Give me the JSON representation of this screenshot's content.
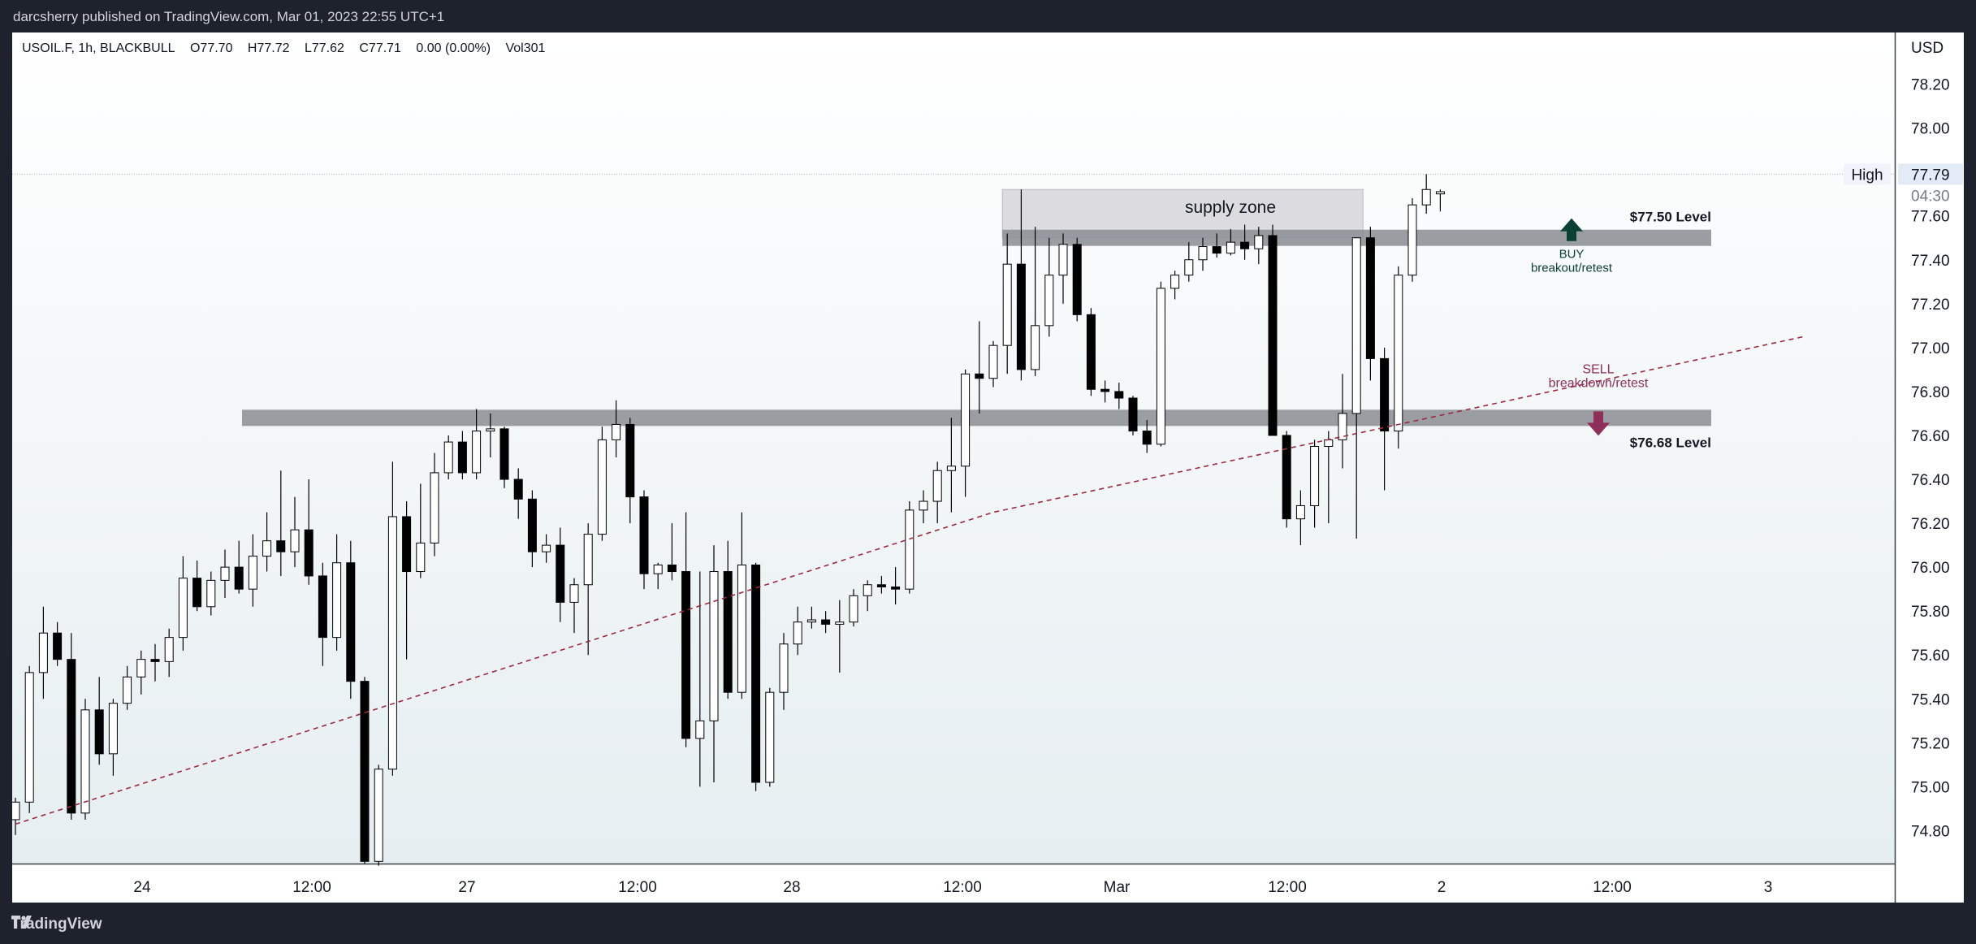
{
  "header": {
    "published": "darcsherry published on TradingView.com, Mar 01, 2023 22:55 UTC+1"
  },
  "legend": {
    "symbol": "USOIL.F, 1h, BLACKBULL",
    "open": "O77.70",
    "high": "H77.72",
    "low": "L77.62",
    "close": "C77.71",
    "change": "0.00 (0.00%)",
    "volume": "Vol301"
  },
  "price_axis": {
    "currency": "USD",
    "high_tag": "High",
    "high_value": "77.79",
    "countdown": "04:30"
  },
  "annotations": {
    "supply_zone": "supply zone",
    "level_top": "$77.50 Level",
    "level_bottom": "$76.68 Level",
    "buy": "BUY",
    "buy_sub": "breakout/retest",
    "sell": "SELL",
    "sell_sub": "breakdown/retest"
  },
  "footer": {
    "brand": "TradingView"
  },
  "colors": {
    "bull_body": "#ffffff",
    "bear_body": "#000000",
    "wick": "#000000",
    "zone_fill": "#dcdce0",
    "level_band": "#8a8d93",
    "trendline": "#9c2a3e",
    "buy_arrow": "#0b4037",
    "sell_arrow": "#8e2e59"
  },
  "chart_data": {
    "type": "candlestick",
    "timeframe": "1h",
    "x_tick_labels": [
      "24",
      "12:00",
      "27",
      "12:00",
      "28",
      "12:00",
      "Mar",
      "12:00",
      "2",
      "12:00",
      "3"
    ],
    "y_tick_labels": [
      "78.20",
      "78.00",
      "77.60",
      "77.40",
      "77.20",
      "77.00",
      "76.80",
      "76.60",
      "76.40",
      "76.20",
      "76.00",
      "75.80",
      "75.60",
      "75.40",
      "75.20",
      "75.00",
      "74.80"
    ],
    "ylim": [
      74.65,
      78.45
    ],
    "levels": [
      77.5,
      76.68
    ],
    "supply_zone": [
      77.5,
      77.72
    ],
    "trendline": [
      [
        0,
        74.83
      ],
      [
        70,
        76.25
      ],
      [
        128,
        77.05
      ]
    ],
    "candles": [
      {
        "o": 74.85,
        "h": 74.95,
        "l": 74.78,
        "c": 74.93
      },
      {
        "o": 74.93,
        "h": 75.55,
        "l": 74.88,
        "c": 75.52
      },
      {
        "o": 75.52,
        "h": 75.82,
        "l": 75.4,
        "c": 75.7
      },
      {
        "o": 75.7,
        "h": 75.75,
        "l": 75.55,
        "c": 75.58
      },
      {
        "o": 75.58,
        "h": 75.7,
        "l": 74.85,
        "c": 74.88
      },
      {
        "o": 74.88,
        "h": 75.4,
        "l": 74.85,
        "c": 75.35
      },
      {
        "o": 75.35,
        "h": 75.5,
        "l": 75.1,
        "c": 75.15
      },
      {
        "o": 75.15,
        "h": 75.4,
        "l": 75.05,
        "c": 75.38
      },
      {
        "o": 75.38,
        "h": 75.55,
        "l": 75.35,
        "c": 75.5
      },
      {
        "o": 75.5,
        "h": 75.62,
        "l": 75.42,
        "c": 75.58
      },
      {
        "o": 75.58,
        "h": 75.65,
        "l": 75.48,
        "c": 75.57
      },
      {
        "o": 75.57,
        "h": 75.72,
        "l": 75.5,
        "c": 75.68
      },
      {
        "o": 75.68,
        "h": 76.05,
        "l": 75.62,
        "c": 75.95
      },
      {
        "o": 75.95,
        "h": 76.03,
        "l": 75.8,
        "c": 75.82
      },
      {
        "o": 75.82,
        "h": 75.98,
        "l": 75.78,
        "c": 75.94
      },
      {
        "o": 75.94,
        "h": 76.08,
        "l": 75.86,
        "c": 76.0
      },
      {
        "o": 76.0,
        "h": 76.12,
        "l": 75.88,
        "c": 75.9
      },
      {
        "o": 75.9,
        "h": 76.15,
        "l": 75.82,
        "c": 76.05
      },
      {
        "o": 76.05,
        "h": 76.25,
        "l": 75.98,
        "c": 76.12
      },
      {
        "o": 76.12,
        "h": 76.44,
        "l": 75.96,
        "c": 76.07
      },
      {
        "o": 76.07,
        "h": 76.32,
        "l": 76.0,
        "c": 76.17
      },
      {
        "o": 76.17,
        "h": 76.4,
        "l": 75.92,
        "c": 75.96
      },
      {
        "o": 75.96,
        "h": 76.02,
        "l": 75.55,
        "c": 75.68
      },
      {
        "o": 75.68,
        "h": 76.15,
        "l": 75.62,
        "c": 76.02
      },
      {
        "o": 76.02,
        "h": 76.12,
        "l": 75.4,
        "c": 75.48
      },
      {
        "o": 75.48,
        "h": 75.5,
        "l": 74.65,
        "c": 74.66
      },
      {
        "o": 74.66,
        "h": 75.1,
        "l": 74.64,
        "c": 75.08
      },
      {
        "o": 75.08,
        "h": 76.48,
        "l": 75.05,
        "c": 76.23
      },
      {
        "o": 76.23,
        "h": 76.3,
        "l": 75.58,
        "c": 75.98
      },
      {
        "o": 75.98,
        "h": 76.38,
        "l": 75.95,
        "c": 76.11
      },
      {
        "o": 76.11,
        "h": 76.52,
        "l": 76.05,
        "c": 76.43
      },
      {
        "o": 76.43,
        "h": 76.6,
        "l": 76.4,
        "c": 76.57
      },
      {
        "o": 76.57,
        "h": 76.62,
        "l": 76.4,
        "c": 76.43
      },
      {
        "o": 76.43,
        "h": 76.72,
        "l": 76.4,
        "c": 76.62
      },
      {
        "o": 76.62,
        "h": 76.7,
        "l": 76.5,
        "c": 76.63
      },
      {
        "o": 76.63,
        "h": 76.64,
        "l": 76.36,
        "c": 76.4
      },
      {
        "o": 76.4,
        "h": 76.45,
        "l": 76.22,
        "c": 76.31
      },
      {
        "o": 76.31,
        "h": 76.35,
        "l": 76.0,
        "c": 76.07
      },
      {
        "o": 76.07,
        "h": 76.15,
        "l": 76.02,
        "c": 76.1
      },
      {
        "o": 76.1,
        "h": 76.18,
        "l": 75.75,
        "c": 75.84
      },
      {
        "o": 75.84,
        "h": 75.95,
        "l": 75.7,
        "c": 75.92
      },
      {
        "o": 75.92,
        "h": 76.2,
        "l": 75.6,
        "c": 76.15
      },
      {
        "o": 76.15,
        "h": 76.64,
        "l": 76.12,
        "c": 76.58
      },
      {
        "o": 76.58,
        "h": 76.76,
        "l": 76.5,
        "c": 76.65
      },
      {
        "o": 76.65,
        "h": 76.68,
        "l": 76.2,
        "c": 76.32
      },
      {
        "o": 76.32,
        "h": 76.35,
        "l": 75.9,
        "c": 75.97
      },
      {
        "o": 75.97,
        "h": 76.02,
        "l": 75.9,
        "c": 76.01
      },
      {
        "o": 76.01,
        "h": 76.2,
        "l": 75.94,
        "c": 75.98
      },
      {
        "o": 75.98,
        "h": 76.25,
        "l": 75.18,
        "c": 75.22
      },
      {
        "o": 75.22,
        "h": 75.98,
        "l": 75.0,
        "c": 75.3
      },
      {
        "o": 75.3,
        "h": 76.1,
        "l": 75.02,
        "c": 75.98
      },
      {
        "o": 75.98,
        "h": 76.12,
        "l": 75.4,
        "c": 75.43
      },
      {
        "o": 75.43,
        "h": 76.25,
        "l": 75.4,
        "c": 76.01
      },
      {
        "o": 76.01,
        "h": 76.02,
        "l": 74.98,
        "c": 75.02
      },
      {
        "o": 75.02,
        "h": 75.45,
        "l": 75.0,
        "c": 75.43
      },
      {
        "o": 75.43,
        "h": 75.7,
        "l": 75.35,
        "c": 75.65
      },
      {
        "o": 75.65,
        "h": 75.82,
        "l": 75.6,
        "c": 75.75
      },
      {
        "o": 75.75,
        "h": 75.82,
        "l": 75.72,
        "c": 75.76
      },
      {
        "o": 75.76,
        "h": 75.8,
        "l": 75.7,
        "c": 75.74
      },
      {
        "o": 75.74,
        "h": 75.85,
        "l": 75.52,
        "c": 75.75
      },
      {
        "o": 75.75,
        "h": 75.9,
        "l": 75.73,
        "c": 75.87
      },
      {
        "o": 75.87,
        "h": 75.94,
        "l": 75.8,
        "c": 75.92
      },
      {
        "o": 75.92,
        "h": 75.96,
        "l": 75.88,
        "c": 75.91
      },
      {
        "o": 75.91,
        "h": 76.0,
        "l": 75.83,
        "c": 75.9
      },
      {
        "o": 75.9,
        "h": 76.3,
        "l": 75.88,
        "c": 76.26
      },
      {
        "o": 76.26,
        "h": 76.35,
        "l": 76.2,
        "c": 76.3
      },
      {
        "o": 76.3,
        "h": 76.48,
        "l": 76.2,
        "c": 76.44
      },
      {
        "o": 76.44,
        "h": 76.68,
        "l": 76.25,
        "c": 76.46
      },
      {
        "o": 76.46,
        "h": 76.9,
        "l": 76.32,
        "c": 76.88
      },
      {
        "o": 76.88,
        "h": 77.12,
        "l": 76.7,
        "c": 76.86
      },
      {
        "o": 76.86,
        "h": 77.03,
        "l": 76.82,
        "c": 77.01
      },
      {
        "o": 77.01,
        "h": 77.52,
        "l": 76.88,
        "c": 77.38
      },
      {
        "o": 77.38,
        "h": 77.72,
        "l": 76.85,
        "c": 76.9
      },
      {
        "o": 76.9,
        "h": 77.55,
        "l": 76.87,
        "c": 77.1
      },
      {
        "o": 77.1,
        "h": 77.5,
        "l": 77.05,
        "c": 77.33
      },
      {
        "o": 77.33,
        "h": 77.52,
        "l": 77.2,
        "c": 77.47
      },
      {
        "o": 77.47,
        "h": 77.5,
        "l": 77.12,
        "c": 77.15
      },
      {
        "o": 77.15,
        "h": 77.18,
        "l": 76.78,
        "c": 76.81
      },
      {
        "o": 76.81,
        "h": 76.85,
        "l": 76.75,
        "c": 76.8
      },
      {
        "o": 76.8,
        "h": 76.84,
        "l": 76.72,
        "c": 76.77
      },
      {
        "o": 76.77,
        "h": 76.78,
        "l": 76.6,
        "c": 76.62
      },
      {
        "o": 76.62,
        "h": 76.67,
        "l": 76.52,
        "c": 76.56
      },
      {
        "o": 76.56,
        "h": 77.3,
        "l": 76.55,
        "c": 77.27
      },
      {
        "o": 77.27,
        "h": 77.35,
        "l": 77.22,
        "c": 77.33
      },
      {
        "o": 77.33,
        "h": 77.48,
        "l": 77.3,
        "c": 77.4
      },
      {
        "o": 77.4,
        "h": 77.5,
        "l": 77.35,
        "c": 77.46
      },
      {
        "o": 77.46,
        "h": 77.52,
        "l": 77.41,
        "c": 77.43
      },
      {
        "o": 77.43,
        "h": 77.54,
        "l": 77.42,
        "c": 77.48
      },
      {
        "o": 77.48,
        "h": 77.56,
        "l": 77.4,
        "c": 77.45
      },
      {
        "o": 77.45,
        "h": 77.55,
        "l": 77.38,
        "c": 77.51
      },
      {
        "o": 77.51,
        "h": 77.56,
        "l": 76.6,
        "c": 76.6
      },
      {
        "o": 76.6,
        "h": 76.62,
        "l": 76.18,
        "c": 76.22
      },
      {
        "o": 76.22,
        "h": 76.35,
        "l": 76.1,
        "c": 76.28
      },
      {
        "o": 76.28,
        "h": 76.58,
        "l": 76.18,
        "c": 76.55
      },
      {
        "o": 76.55,
        "h": 76.62,
        "l": 76.2,
        "c": 76.58
      },
      {
        "o": 76.58,
        "h": 76.88,
        "l": 76.45,
        "c": 76.7
      },
      {
        "o": 76.7,
        "h": 77.5,
        "l": 76.13,
        "c": 77.5
      },
      {
        "o": 77.5,
        "h": 77.55,
        "l": 76.85,
        "c": 76.95
      },
      {
        "o": 76.95,
        "h": 77.0,
        "l": 76.35,
        "c": 76.62
      },
      {
        "o": 76.62,
        "h": 77.37,
        "l": 76.54,
        "c": 77.33
      },
      {
        "o": 77.33,
        "h": 77.68,
        "l": 77.3,
        "c": 77.65
      },
      {
        "o": 77.65,
        "h": 77.79,
        "l": 77.61,
        "c": 77.72
      },
      {
        "o": 77.7,
        "h": 77.72,
        "l": 77.62,
        "c": 77.71
      }
    ]
  }
}
